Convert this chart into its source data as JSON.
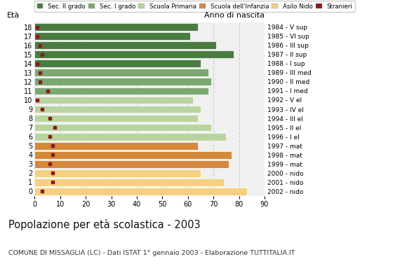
{
  "ages": [
    18,
    17,
    16,
    15,
    14,
    13,
    12,
    11,
    10,
    9,
    8,
    7,
    6,
    5,
    4,
    3,
    2,
    1,
    0
  ],
  "bar_values": [
    64,
    61,
    71,
    78,
    65,
    68,
    69,
    68,
    62,
    65,
    64,
    69,
    75,
    64,
    77,
    76,
    65,
    74,
    83
  ],
  "stranieri_values": [
    1,
    1,
    2,
    3,
    1,
    2,
    2,
    5,
    1,
    3,
    6,
    8,
    6,
    7,
    7,
    6,
    7,
    7,
    3
  ],
  "anno_nascita": [
    "1984 - V sup",
    "1985 - VI sup",
    "1986 - III sup",
    "1987 - II sup",
    "1988 - I sup",
    "1989 - III med",
    "1990 - II med",
    "1991 - I med",
    "1992 - V el",
    "1993 - IV el",
    "1994 - III el",
    "1995 - II el",
    "1996 - I el",
    "1997 - mat",
    "1998 - mat",
    "1999 - mat",
    "2000 - nido",
    "2001 - nido",
    "2002 - nido"
  ],
  "categories": [
    "Sec. II grado",
    "Sec. I grado",
    "Scuola Primaria",
    "Scuola dell'Infanzia",
    "Asilo Nido"
  ],
  "category_colors": [
    "#4a7c42",
    "#7ba870",
    "#b8d4a0",
    "#d4883a",
    "#f5d080"
  ],
  "stranieri_color": "#8b1a1a",
  "title": "Popolazione per età scolastica - 2003",
  "subtitle": "COMUNE DI MISSAGLIA (LC) - Dati ISTAT 1° gennaio 2003 - Elaborazione TUTTITALIA.IT",
  "ylabel": "Età",
  "ylabel2": "Anno di nascita",
  "xlim": [
    0,
    90
  ],
  "xticks": [
    0,
    10,
    20,
    30,
    40,
    50,
    60,
    70,
    80,
    90
  ],
  "background_color": "#ffffff",
  "plot_bg_color": "#f0f0f0",
  "grid_color": "#cccccc",
  "bar_height": 0.82
}
